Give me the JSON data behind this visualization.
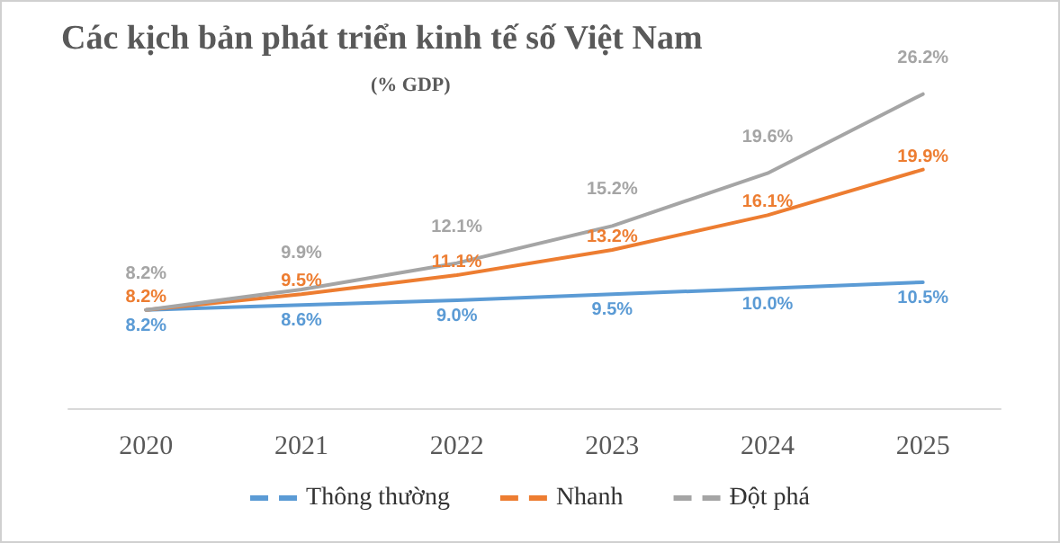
{
  "chart_data": {
    "type": "line",
    "title": "Các kịch bản phát triển kinh tế số Việt Nam",
    "subtitle": "(% GDP)",
    "categories": [
      "2020",
      "2021",
      "2022",
      "2023",
      "2024",
      "2025"
    ],
    "series": [
      {
        "name": "Thông thường",
        "color": "#5b9bd5",
        "values": [
          8.2,
          8.6,
          9.0,
          9.5,
          10.0,
          10.5
        ],
        "value_labels": [
          "8.2%",
          "8.6%",
          "9.0%",
          "9.5%",
          "10.0%",
          "10.5%"
        ]
      },
      {
        "name": "Nhanh",
        "color": "#ed7d31",
        "values": [
          8.2,
          9.5,
          11.1,
          13.2,
          16.1,
          19.9
        ],
        "value_labels": [
          "8.2%",
          "9.5%",
          "11.1%",
          "13.2%",
          "16.1%",
          "19.9%"
        ]
      },
      {
        "name": "Đột phá",
        "color": "#a5a5a5",
        "values": [
          8.2,
          9.9,
          12.1,
          15.2,
          19.6,
          26.2
        ],
        "value_labels": [
          "8.2%",
          "9.9%",
          "12.1%",
          "15.2%",
          "19.6%",
          "26.2%"
        ]
      }
    ],
    "legend": "bottom",
    "grid": false,
    "marker": "none",
    "line_style": "solid"
  }
}
